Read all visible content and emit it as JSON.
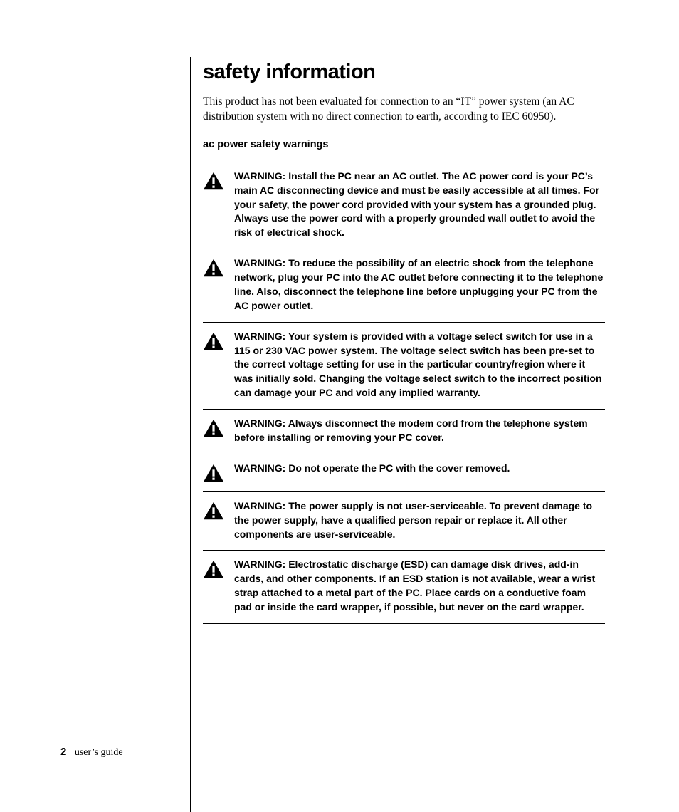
{
  "page": {
    "title": "safety information",
    "intro": "This product has not been evaluated for connection to an “IT” power system (an AC distribution system with no direct connection to earth, according to IEC 60950).",
    "subhead": "ac power safety warnings",
    "warnings": [
      {
        "text": "WARNING: Install the PC near an AC outlet. The AC power cord is your PC’s main AC disconnecting device and must be easily accessible at all times. For your safety, the power cord provided with your system has a grounded plug. Always use the power cord with a properly grounded wall outlet to avoid the risk of electrical shock."
      },
      {
        "text": "WARNING: To reduce the possibility of an electric shock from the telephone network, plug your PC into the AC outlet before connecting it to the telephone line. Also, disconnect the telephone line before unplugging your PC from the AC power outlet."
      },
      {
        "text": "WARNING: Your system is provided with a voltage select switch for  use in a 115 or 230 VAC power system. The voltage select switch has been pre-set to the correct voltage setting for use in the particular country/region where it was initially sold. Changing the voltage select switch to the incorrect position can damage your PC and void any implied warranty."
      },
      {
        "text": "WARNING: Always disconnect the modem cord from the telephone system before installing or removing your PC cover."
      },
      {
        "text": "WARNING: Do not operate the PC with the cover removed."
      },
      {
        "text": "WARNING: The power supply is not user-serviceable. To prevent damage to the power supply, have a qualified person repair or replace it. All other components are user-serviceable."
      },
      {
        "text": "WARNING: Electrostatic discharge (ESD) can damage disk drives, add-in cards, and other components. If an ESD station is not available, wear a wrist strap attached to a metal part of the PC. Place cards on a conductive foam pad or inside the card wrapper, if possible, but never on the card wrapper."
      }
    ],
    "footer": {
      "page_number": "2",
      "label": "user’s guide"
    }
  },
  "style": {
    "background_color": "#ffffff",
    "text_color": "#000000",
    "rule_color": "#000000",
    "title_fontsize": 29,
    "intro_fontsize": 15.5,
    "subhead_fontsize": 14.5,
    "warning_fontsize": 14,
    "icon": {
      "fill": "#000000",
      "exclaim_fill": "#ffffff"
    }
  }
}
